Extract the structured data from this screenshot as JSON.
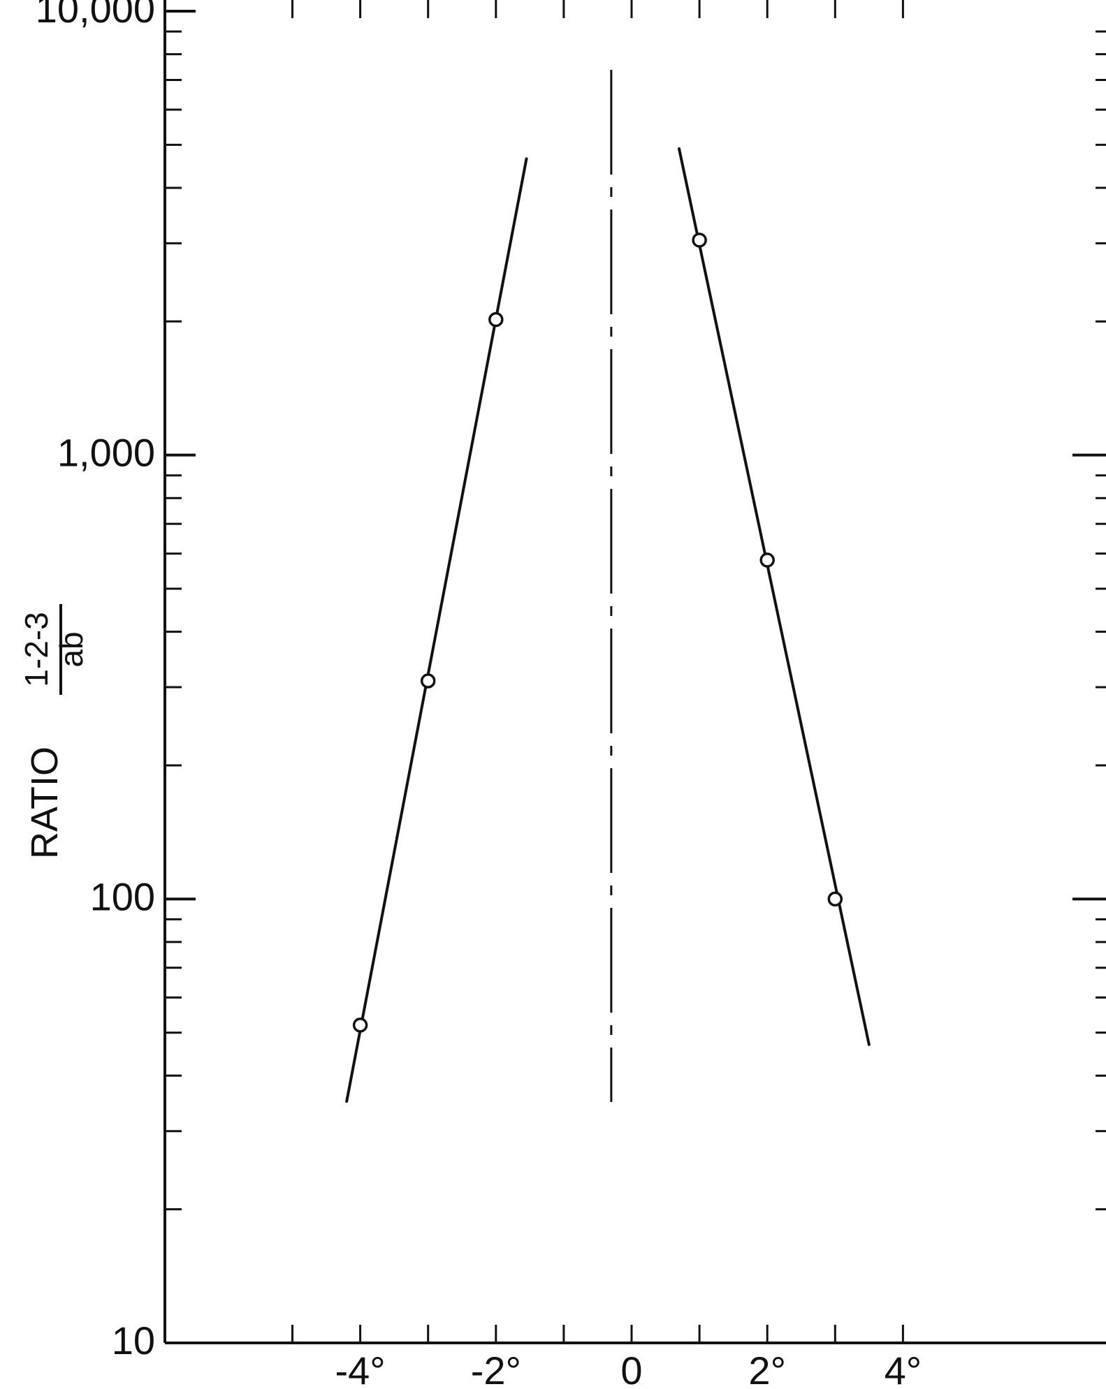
{
  "chart_data": {
    "type": "scatter",
    "title": "",
    "xlabel": "",
    "ylabel": {
      "prefix": "RATIO",
      "numerator": "1-2-3",
      "denominator": "ab"
    },
    "y_scale": "log",
    "ylim": [
      10,
      10000
    ],
    "xlim": [
      -6.3,
      7
    ],
    "y_tick_labels": [
      "10",
      "100",
      "1,000",
      "10,000"
    ],
    "y_tick_values": [
      10,
      100,
      1000,
      10000
    ],
    "x_tick_labels": [
      "-4°",
      "-2°",
      "0",
      "2°",
      "4°"
    ],
    "x_tick_values": [
      -4,
      -2,
      0,
      2,
      4
    ],
    "grid": false,
    "center_line_x": -0.3,
    "series": [
      {
        "points": [
          {
            "x": -4,
            "y": 52
          },
          {
            "x": -3,
            "y": 310
          },
          {
            "x": -2,
            "y": 2020
          }
        ],
        "fit_line": [
          {
            "x": -4.2,
            "y": 35
          },
          {
            "x": -1.55,
            "y": 4650
          }
        ]
      },
      {
        "points": [
          {
            "x": 1,
            "y": 3050
          },
          {
            "x": 2,
            "y": 580
          },
          {
            "x": 3,
            "y": 100
          }
        ],
        "fit_line": [
          {
            "x": 0.7,
            "y": 4900
          },
          {
            "x": 3.5,
            "y": 47
          }
        ]
      }
    ],
    "colors": {
      "ink": "#111111",
      "background": "#ffffff"
    }
  }
}
